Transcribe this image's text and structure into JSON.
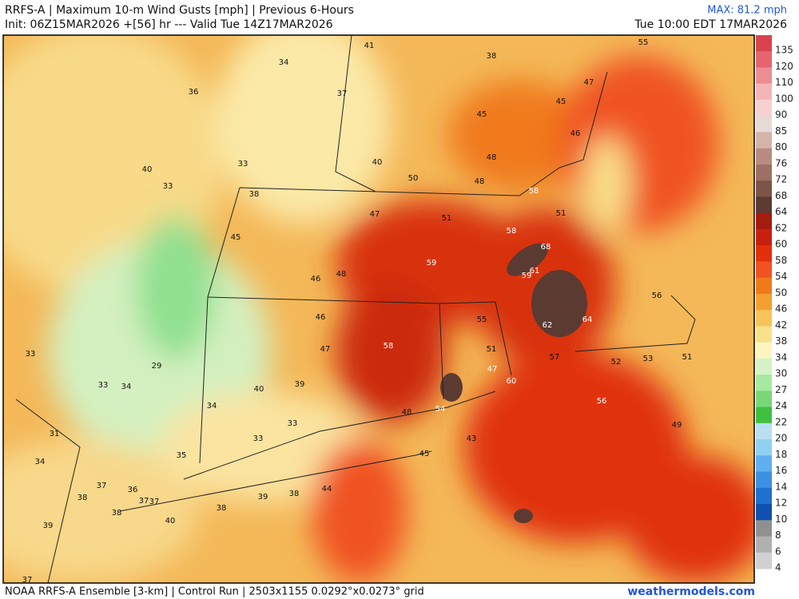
{
  "header": {
    "title": "RRFS-A | Maximum 10-m Wind Gusts [mph] | Previous 6-Hours",
    "init": "Init: 06Z15MAR2026 +[56] hr --- Valid Tue 14Z17MAR2026",
    "max": "MAX: 81.2 mph",
    "valid_local": "Tue 10:00 EDT 17MAR2026"
  },
  "map": {
    "labels": [
      55,
      38,
      41,
      34,
      47,
      36,
      37,
      45,
      45,
      46,
      40,
      33,
      40,
      50,
      48,
      48,
      33,
      38,
      58,
      47,
      51,
      51,
      58,
      45,
      68,
      59,
      59,
      61,
      46,
      48,
      56,
      46,
      55,
      62,
      64,
      58,
      47,
      51,
      57,
      52,
      53,
      51,
      33,
      29,
      47,
      60,
      33,
      34,
      40,
      39,
      56,
      34,
      48,
      54,
      33,
      49,
      31,
      33,
      43,
      35,
      45,
      34,
      37,
      36,
      44,
      38,
      37,
      37,
      39,
      38,
      38,
      38,
      40,
      39,
      37
    ]
  },
  "colorbar": {
    "labels": [
      135,
      120,
      110,
      100,
      90,
      85,
      80,
      76,
      72,
      68,
      64,
      62,
      60,
      58,
      54,
      50,
      46,
      42,
      38,
      34,
      30,
      27,
      24,
      22,
      20,
      18,
      16,
      14,
      12,
      10,
      8,
      6,
      4
    ],
    "colors": [
      "#d9434e",
      "#e46570",
      "#ec8d92",
      "#f5b5b8",
      "#f7d1d1",
      "#e6dad7",
      "#d4b3a9",
      "#b88c80",
      "#9e7064",
      "#7d5448",
      "#5b3a32",
      "#a41c0e",
      "#c8200f",
      "#e0300d",
      "#f05222",
      "#f07a1a",
      "#f4a030",
      "#f6c45a",
      "#f9e08a",
      "#fdf5bf",
      "#d6f2c6",
      "#a8e8a0",
      "#78d878",
      "#40c040",
      "#b8e0f0",
      "#90d0f0",
      "#60b0f0",
      "#3d90e0",
      "#2070d0",
      "#1050b0",
      "#909090",
      "#b0b0b0",
      "#d0d0d0"
    ]
  },
  "footer": {
    "source": "NOAA RRFS-A Ensemble [3-km] | Control Run | 2503x1155 0.0292°x0.0273° grid",
    "site": "weathermodels.com"
  }
}
